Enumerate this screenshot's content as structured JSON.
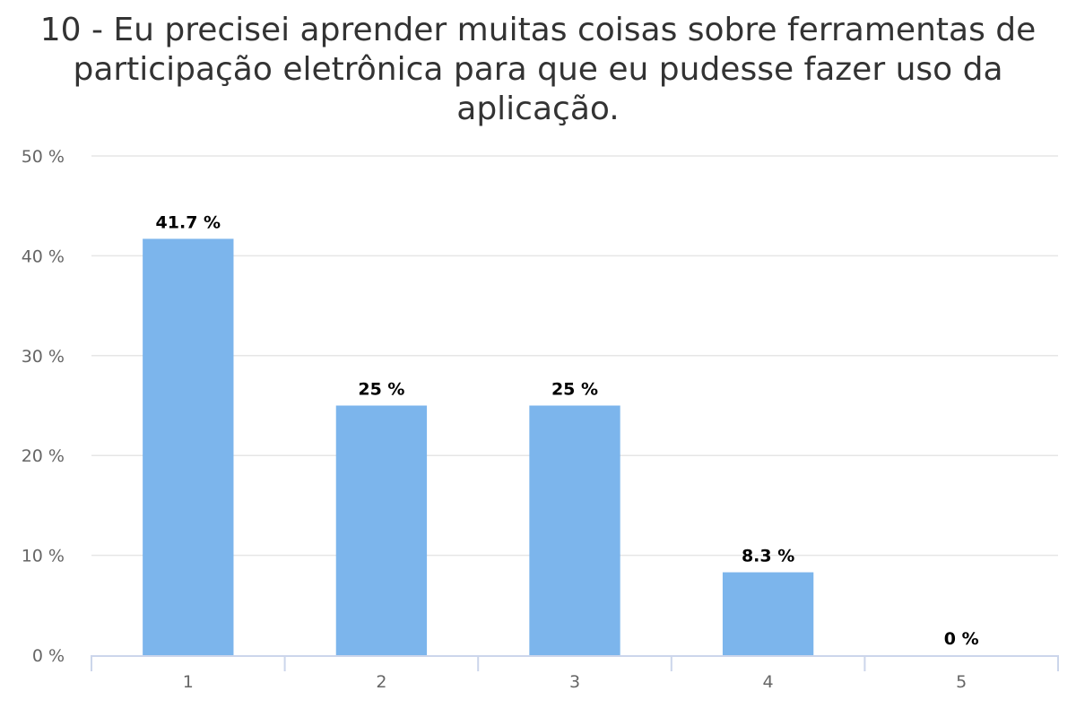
{
  "chart_data": {
    "type": "bar",
    "title": "10 - Eu precisei aprender muitas coisas sobre ferramentas de participação eletrônica para que eu pudesse fazer uso da aplicação.",
    "categories": [
      "1",
      "2",
      "3",
      "4",
      "5"
    ],
    "values": [
      41.7,
      25,
      25,
      8.3,
      0
    ],
    "data_labels": [
      "41.7 %",
      "25 %",
      "25 %",
      "8.3 %",
      "0 %"
    ],
    "ylim": [
      0,
      50
    ],
    "yticks": [
      0,
      10,
      20,
      30,
      40,
      50
    ],
    "ytick_labels": [
      "0 %",
      "10 %",
      "20 %",
      "30 %",
      "40 %",
      "50 %"
    ],
    "xlabel": "",
    "ylabel": "",
    "grid": true,
    "legend": "none",
    "colors": {
      "bar": "#7cb5ec",
      "grid": "#e6e6e6",
      "axis": "#ccd6eb",
      "tick_text": "#666666",
      "data_label": "#000000",
      "title": "#333333"
    }
  }
}
